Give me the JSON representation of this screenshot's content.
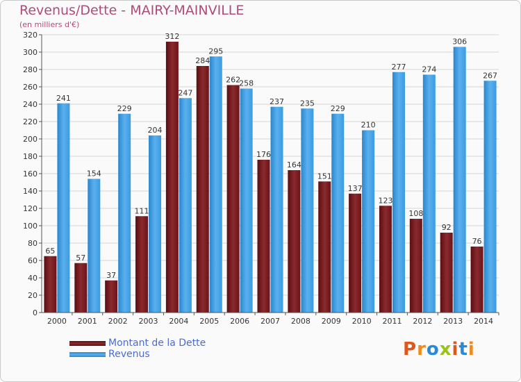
{
  "title": "Revenus/Dette - MAIRY-MAINVILLE",
  "subtitle": "(en milliers d'€)",
  "legend": {
    "debt_label": "Montant de la Dette",
    "revenue_label": "Revenus"
  },
  "logo": {
    "text": "Proxiti"
  },
  "colors": {
    "debt": "#7a1e22",
    "revenue": "#3a9be0",
    "title": "#b04a7a",
    "legend_text": "#4a6bd6"
  },
  "chart_data": {
    "type": "bar",
    "categories": [
      "2000",
      "2001",
      "2002",
      "2003",
      "2004",
      "2005",
      "2006",
      "2007",
      "2008",
      "2009",
      "2010",
      "2011",
      "2012",
      "2013",
      "2014"
    ],
    "series": [
      {
        "name": "Montant de la Dette",
        "values": [
          65,
          57,
          37,
          111,
          312,
          284,
          262,
          176,
          164,
          151,
          137,
          123,
          108,
          92,
          76
        ]
      },
      {
        "name": "Revenus",
        "values": [
          241,
          154,
          229,
          204,
          247,
          295,
          258,
          237,
          235,
          229,
          210,
          277,
          274,
          306,
          267
        ]
      }
    ],
    "title": "Revenus/Dette - MAIRY-MAINVILLE",
    "ylabel": "(en milliers d'€)",
    "ylim": [
      0,
      320
    ],
    "yticks": [
      0,
      20,
      40,
      60,
      80,
      100,
      120,
      140,
      160,
      180,
      200,
      220,
      240,
      260,
      280,
      300,
      320
    ],
    "grid": true,
    "legend_position": "bottom-left"
  }
}
